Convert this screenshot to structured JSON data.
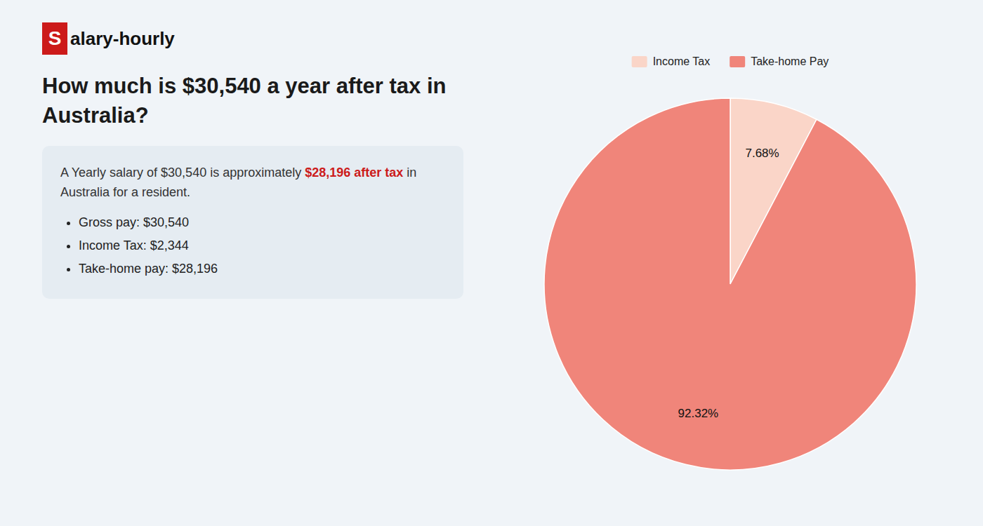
{
  "chart_data": {
    "type": "pie",
    "title": "How much is $30,540 a year after tax in\nAustralia?",
    "annotations": [
      "S",
      "alary-hourly",
      "A Yearly salary of $30,540 is approximately ",
      "$28,196 after tax",
      " in",
      "Australia for a resident.",
      "Gross pay: $30,540",
      "Income Tax: $2,344",
      "Take-home pay: $28,196"
    ],
    "categories": [
      "Income Tax",
      "Take-home Pay"
    ],
    "values": [
      7.68,
      92.32
    ],
    "value_labels": [
      "7.68%",
      "92.32%"
    ],
    "colors": [
      "#fad5c8",
      "#f0857a"
    ],
    "data_labels": true,
    "legend": "top"
  }
}
